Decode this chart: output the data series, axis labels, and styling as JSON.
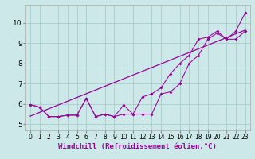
{
  "title": "",
  "xlabel": "Windchill (Refroidissement éolien,°C)",
  "background_color": "#cce8e8",
  "line_color": "#990099",
  "grid_color": "#aacccc",
  "xlim": [
    -0.5,
    23.5
  ],
  "ylim": [
    4.7,
    10.9
  ],
  "xticks": [
    0,
    1,
    2,
    3,
    4,
    5,
    6,
    7,
    8,
    9,
    10,
    11,
    12,
    13,
    14,
    15,
    16,
    17,
    18,
    19,
    20,
    21,
    22,
    23
  ],
  "yticks": [
    5,
    6,
    7,
    8,
    9,
    10
  ],
  "series1_x": [
    0,
    1,
    2,
    3,
    4,
    5,
    6,
    7,
    8,
    9,
    10,
    11,
    12,
    13,
    14,
    15,
    16,
    17,
    18,
    19,
    20,
    21,
    22,
    23
  ],
  "series1_y": [
    5.97,
    5.85,
    5.38,
    5.38,
    5.45,
    5.45,
    6.28,
    5.38,
    5.5,
    5.38,
    5.5,
    5.5,
    5.5,
    5.5,
    6.5,
    6.6,
    7.0,
    8.0,
    8.4,
    9.2,
    9.5,
    9.2,
    9.2,
    9.6
  ],
  "series2_x": [
    0,
    1,
    2,
    3,
    4,
    5,
    6,
    7,
    8,
    9,
    10,
    11,
    12,
    13,
    14,
    15,
    16,
    17,
    18,
    19,
    20,
    21,
    22,
    23
  ],
  "series2_y": [
    5.97,
    5.85,
    5.38,
    5.38,
    5.45,
    5.45,
    6.28,
    5.38,
    5.5,
    5.38,
    5.95,
    5.5,
    6.35,
    6.5,
    6.8,
    7.5,
    8.0,
    8.4,
    9.2,
    9.3,
    9.6,
    9.2,
    9.6,
    10.5
  ],
  "series3_x": [
    0,
    23
  ],
  "series3_y": [
    5.4,
    9.65
  ],
  "font_size_xlabel": 6.5,
  "font_size_yticks": 6.5,
  "font_size_xticks": 5.5
}
